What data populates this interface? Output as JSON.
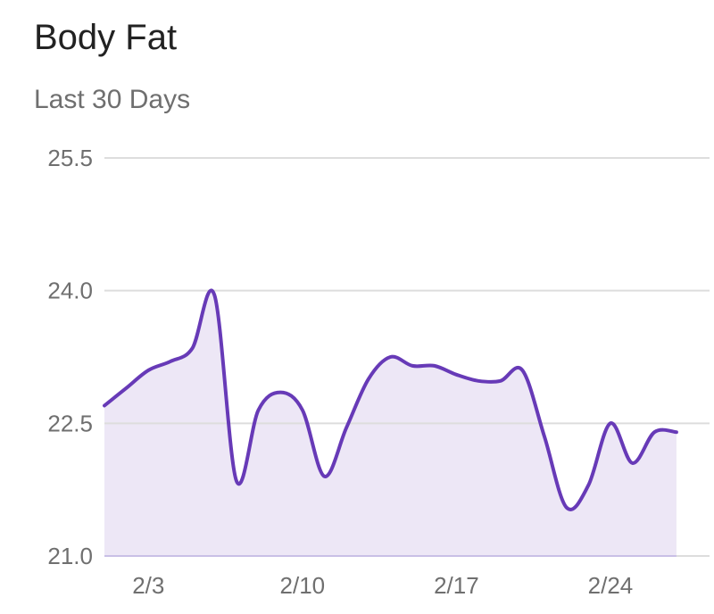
{
  "header": {
    "title": "Body Fat",
    "subtitle": "Last 30 Days"
  },
  "chart_data": {
    "type": "area",
    "title": "Body Fat",
    "subtitle": "Last 30 Days",
    "xlabel": "",
    "ylabel": "",
    "ylim": [
      21.0,
      25.5
    ],
    "yticks": [
      "25.5",
      "24.0",
      "22.5",
      "21.0"
    ],
    "xticks": [
      "2/3",
      "2/10",
      "2/17",
      "2/24"
    ],
    "grid": true,
    "colors": {
      "line": "#673ab7",
      "fill": "#ede7f6",
      "grid": "#dddddd"
    },
    "series": [
      {
        "x": [
          "2/1",
          "2/2",
          "2/3",
          "2/4",
          "2/5",
          "2/6",
          "2/7",
          "2/8",
          "2/9",
          "2/10",
          "2/11",
          "2/12",
          "2/13",
          "2/14",
          "2/15",
          "2/16",
          "2/17",
          "2/18",
          "2/19",
          "2/20",
          "2/21",
          "2/22",
          "2/23",
          "2/24",
          "2/25",
          "2/26",
          "2/27"
        ],
        "values": [
          22.7,
          22.9,
          23.1,
          23.2,
          23.35,
          23.95,
          21.85,
          22.65,
          22.85,
          22.65,
          21.9,
          22.45,
          23.0,
          23.25,
          23.15,
          23.15,
          23.05,
          22.98,
          22.98,
          23.1,
          22.35,
          21.55,
          21.8,
          22.5,
          22.05,
          22.4,
          22.4
        ]
      }
    ]
  }
}
